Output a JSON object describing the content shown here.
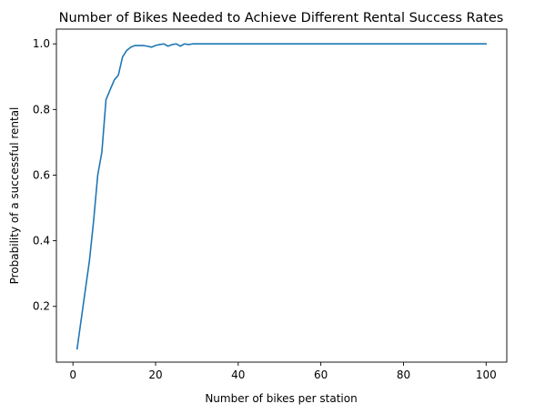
{
  "chart_data": {
    "type": "line",
    "title": "Number of Bikes Needed to Achieve Different Rental Success Rates",
    "xlabel": "Number of bikes per station",
    "ylabel": "Probability of a successful rental",
    "xlim": [
      -4,
      105
    ],
    "ylim": [
      0.03,
      1.045
    ],
    "xticks": [
      0,
      20,
      40,
      60,
      80,
      100
    ],
    "xtick_labels": [
      "0",
      "20",
      "40",
      "60",
      "80",
      "100"
    ],
    "yticks": [
      0.2,
      0.4,
      0.6,
      0.8,
      1.0
    ],
    "ytick_labels": [
      "0.2",
      "0.4",
      "0.6",
      "0.8",
      "1.0"
    ],
    "grid": false,
    "line_color": "#1f77b4",
    "series": [
      {
        "x": [
          1,
          2,
          3,
          4,
          5,
          6,
          7,
          8,
          9,
          10,
          11,
          12,
          13,
          14,
          15,
          16,
          17,
          18,
          19,
          20,
          21,
          22,
          23,
          24,
          25,
          26,
          27,
          28,
          29,
          30,
          35,
          40,
          45,
          50,
          55,
          60,
          65,
          70,
          75,
          80,
          85,
          90,
          95,
          100
        ],
        "values": [
          0.07,
          0.16,
          0.25,
          0.34,
          0.46,
          0.6,
          0.67,
          0.83,
          0.86,
          0.89,
          0.905,
          0.96,
          0.98,
          0.99,
          0.995,
          0.995,
          0.995,
          0.993,
          0.99,
          0.995,
          0.998,
          1.0,
          0.993,
          0.998,
          1.0,
          0.993,
          1.0,
          0.998,
          1.0,
          1.0,
          1.0,
          1.0,
          1.0,
          1.0,
          1.0,
          1.0,
          1.0,
          1.0,
          1.0,
          1.0,
          1.0,
          1.0,
          1.0,
          1.0
        ]
      }
    ]
  }
}
